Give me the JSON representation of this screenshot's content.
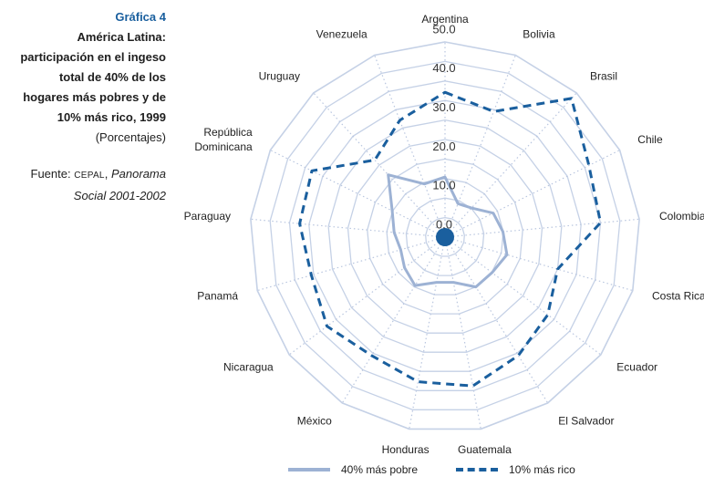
{
  "caption": {
    "label": "Gráfica 4",
    "title_lines": [
      "América Latina:",
      "participación en el ingeso",
      "total de 40% de los",
      "hogares más pobres y de",
      "10% más rico, 1999"
    ],
    "subtitle": "(Porcentajes)",
    "source_prefix": "Fuente: ",
    "source_org": "CEPAL",
    "source_sep": ", ",
    "source_pub_1": "Panorama",
    "source_pub_2": "Social 2001-2002"
  },
  "colors": {
    "poor": "#9db2d4",
    "rich": "#1a5f9e",
    "grid": "#c5d1e6",
    "spoke": "#b9c6df",
    "center": "#1a5f9e"
  },
  "chart_data": {
    "type": "radar",
    "categories": [
      "Argentina",
      "Bolivia",
      "Brasil",
      "Chile",
      "Colombia",
      "Costa Rica",
      "Ecuador",
      "El Salvador",
      "Guatemala",
      "Honduras",
      "México",
      "Nicaragua",
      "Panamá",
      "Paraguay",
      "República Dominicana",
      "Uruguay",
      "Venezuela"
    ],
    "r_ticks": [
      "0.0",
      "10.0",
      "20.0",
      "30.0",
      "40.0",
      "50.0"
    ],
    "r_range": [
      0,
      50
    ],
    "grid_rings": [
      0,
      5,
      10,
      15,
      20,
      25,
      30,
      35,
      40,
      45,
      50
    ],
    "series": [
      {
        "name": "40% más pobre",
        "style": "solid",
        "values": [
          15.4,
          9.2,
          10.1,
          13.8,
          14.9,
          16.5,
          15.1,
          15.0,
          11.8,
          11.8,
          14.6,
          13.0,
          11.8,
          13.1,
          15.1,
          21.6,
          14.6
        ]
      },
      {
        "name": "10% más rico",
        "style": "dashed",
        "values": [
          37.1,
          34.5,
          48.1,
          41.2,
          40.0,
          30.0,
          33.0,
          35.7,
          38.8,
          37.7,
          35.7,
          37.9,
          35.6,
          37.4,
          38.1,
          26.7,
          32.1
        ]
      }
    ],
    "legend_position": "bottom"
  }
}
